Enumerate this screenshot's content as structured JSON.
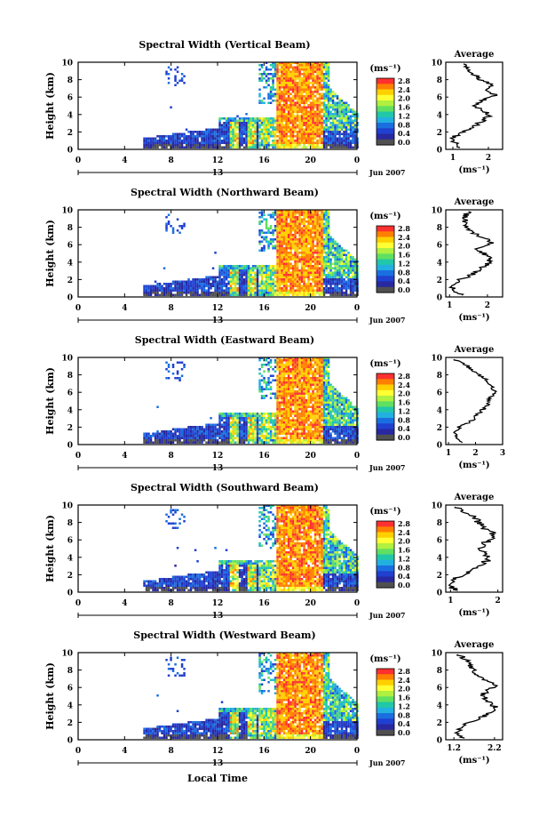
{
  "figure": {
    "xlabel": "Local Time",
    "date_label": "Jun 2007",
    "colorbar_unit": "(ms⁻¹)",
    "colorbar_ticks": [
      "2.8",
      "2.4",
      "2.0",
      "1.6",
      "1.2",
      "0.8",
      "0.4",
      "0.0"
    ],
    "colorbar_colors": [
      "#ff3030",
      "#ff7f00",
      "#ffd000",
      "#ffff33",
      "#b0f040",
      "#60e060",
      "#20c8a8",
      "#22b0e0",
      "#1a6fe0",
      "#2040d0",
      "#2828a0",
      "#505050"
    ],
    "avg_title": "Average",
    "avg_xlabel": "(ms⁻¹)",
    "ylabel": "Height (km)",
    "main_xticks": [
      "0",
      "4",
      "8",
      "12",
      "16",
      "20",
      "0"
    ],
    "date_axis_label": "13",
    "yticks": [
      "0",
      "2",
      "4",
      "6",
      "8",
      "10"
    ]
  },
  "chart_data": [
    {
      "type": "heatmap",
      "title": "Spectral Width (Vertical Beam)",
      "x_range_hours": [
        0,
        24
      ],
      "y_range_km": [
        0,
        10
      ],
      "colorbar_range": [
        0.0,
        2.8
      ],
      "average": {
        "xticks": [
          "1",
          "2"
        ],
        "xlim": [
          0.8,
          2.4
        ],
        "heights": [
          0.2,
          0.8,
          1.4,
          2.0,
          2.6,
          3.2,
          3.8,
          4.4,
          5.0,
          5.6,
          6.2,
          6.8,
          7.4,
          8.0,
          8.6,
          9.2,
          9.8
        ],
        "values": [
          1.2,
          1.05,
          1.0,
          1.3,
          1.6,
          1.8,
          2.0,
          1.9,
          1.6,
          1.8,
          2.2,
          2.0,
          2.1,
          1.8,
          1.6,
          1.4,
          1.3
        ]
      }
    },
    {
      "type": "heatmap",
      "title": "Spectral Width (Northward Beam)",
      "x_range_hours": [
        0,
        24
      ],
      "y_range_km": [
        0,
        10
      ],
      "colorbar_range": [
        0.0,
        2.8
      ],
      "average": {
        "xticks": [
          "1",
          "2"
        ],
        "xlim": [
          0.9,
          2.4
        ],
        "heights": [
          0.2,
          0.8,
          1.4,
          2.0,
          2.6,
          3.2,
          3.8,
          4.4,
          5.0,
          5.6,
          6.2,
          6.8,
          7.4,
          8.0,
          8.6,
          9.2,
          9.8
        ],
        "values": [
          1.3,
          1.1,
          1.05,
          1.3,
          1.6,
          1.8,
          2.0,
          2.1,
          1.9,
          1.7,
          2.1,
          1.9,
          1.6,
          1.5,
          1.4,
          1.4,
          1.5
        ]
      }
    },
    {
      "type": "heatmap",
      "title": "Spectral Width (Eastward Beam)",
      "x_range_hours": [
        0,
        24
      ],
      "y_range_km": [
        0,
        10
      ],
      "colorbar_range": [
        0.0,
        2.8
      ],
      "average": {
        "xticks": [
          "1",
          "2",
          "3"
        ],
        "xlim": [
          0.9,
          3.0
        ],
        "heights": [
          0.2,
          0.8,
          1.4,
          2.0,
          2.6,
          3.2,
          3.8,
          4.4,
          5.0,
          5.6,
          6.2,
          6.8,
          7.4,
          8.0,
          8.6,
          9.2,
          9.8
        ],
        "values": [
          1.5,
          1.3,
          1.2,
          1.4,
          1.8,
          2.0,
          2.2,
          2.4,
          2.5,
          2.6,
          2.7,
          2.6,
          2.4,
          2.1,
          1.9,
          1.6,
          1.2
        ]
      }
    },
    {
      "type": "heatmap",
      "title": "Spectral Width (Southward Beam)",
      "x_range_hours": [
        0,
        24
      ],
      "y_range_km": [
        0,
        10
      ],
      "colorbar_range": [
        0.0,
        2.8
      ],
      "average": {
        "xticks": [
          "1",
          "2"
        ],
        "xlim": [
          0.9,
          2.1
        ],
        "heights": [
          0.2,
          0.8,
          1.4,
          2.0,
          2.6,
          3.2,
          3.8,
          4.4,
          5.0,
          5.6,
          6.2,
          6.8,
          7.4,
          8.0,
          8.6,
          9.2,
          9.8
        ],
        "values": [
          1.1,
          1.0,
          1.05,
          1.3,
          1.5,
          1.7,
          1.8,
          1.7,
          1.6,
          1.7,
          1.95,
          1.9,
          1.7,
          1.6,
          1.5,
          1.3,
          1.1
        ]
      }
    },
    {
      "type": "heatmap",
      "title": "Spectral Width (Westward Beam)",
      "x_range_hours": [
        0,
        24
      ],
      "y_range_km": [
        0,
        10
      ],
      "colorbar_range": [
        0.0,
        2.8
      ],
      "average": {
        "xticks": [
          "1.2",
          "2.2"
        ],
        "xlim": [
          1.0,
          2.4
        ],
        "heights": [
          0.2,
          0.8,
          1.4,
          2.0,
          2.6,
          3.2,
          3.8,
          4.4,
          5.0,
          5.6,
          6.2,
          6.8,
          7.4,
          8.0,
          8.6,
          9.2,
          9.8
        ],
        "values": [
          1.4,
          1.3,
          1.35,
          1.6,
          1.9,
          2.1,
          2.2,
          2.05,
          1.9,
          2.0,
          2.2,
          2.0,
          1.8,
          1.7,
          1.6,
          1.5,
          1.3
        ]
      }
    }
  ]
}
